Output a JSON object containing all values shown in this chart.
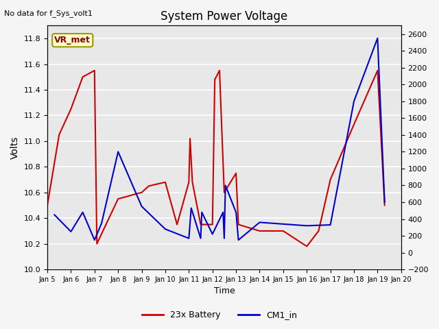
{
  "title": "System Power Voltage",
  "top_left_text": "No data for f_Sys_volt1",
  "annotation_box": "VR_met",
  "xlabel": "Time",
  "ylabel_left": "Volts",
  "ylim_left": [
    10.0,
    11.9
  ],
  "ylim_right": [
    -200,
    2700
  ],
  "x_labels": [
    "Jan 5",
    "Jan 6",
    "Jan 7",
    "Jan 8",
    "Jan 9",
    "Jan 10",
    "Jan 11",
    "Jan 12",
    "Jan 13",
    "Jan 14",
    "Jan 15",
    "Jan 16",
    "Jan 17",
    "Jan 18",
    "Jan 19",
    "Jan 20"
  ],
  "red_x": [
    5.0,
    5.5,
    6.0,
    6.5,
    7.0,
    7.1,
    8.0,
    9.0,
    9.3,
    10.0,
    10.5,
    11.0,
    11.05,
    11.15,
    11.5,
    12.0,
    12.1,
    12.3,
    12.5,
    13.0,
    13.1,
    14.0,
    15.0,
    16.0,
    16.5,
    17.0,
    18.0,
    19.0,
    19.3
  ],
  "red_y": [
    10.5,
    11.05,
    11.25,
    11.5,
    11.55,
    10.2,
    10.55,
    10.6,
    10.65,
    10.68,
    10.35,
    10.68,
    11.02,
    10.68,
    10.35,
    10.35,
    11.48,
    11.55,
    10.6,
    10.75,
    10.35,
    10.3,
    10.3,
    10.18,
    10.3,
    10.7,
    11.13,
    11.55,
    10.5
  ],
  "blue_x": [
    5.3,
    6.0,
    6.5,
    7.0,
    7.3,
    8.0,
    9.0,
    10.0,
    11.0,
    11.1,
    11.5,
    11.55,
    12.0,
    12.45,
    12.5,
    12.55,
    13.0,
    13.1,
    14.0,
    15.0,
    16.0,
    17.0,
    18.0,
    19.0,
    19.3
  ],
  "blue_y": [
    450,
    250,
    480,
    150,
    350,
    1200,
    550,
    280,
    170,
    530,
    170,
    480,
    220,
    480,
    170,
    800,
    480,
    150,
    360,
    340,
    320,
    330,
    1800,
    2550,
    600
  ],
  "red_color": "#cc0000",
  "blue_color": "#0000cc",
  "grid_color": "white",
  "fig_bg": "#f5f5f5",
  "plot_bg": "#e8e8e8",
  "right_yticks": [
    -200,
    0,
    200,
    400,
    600,
    800,
    1000,
    1200,
    1400,
    1600,
    1800,
    2000,
    2200,
    2400,
    2600
  ],
  "left_yticks": [
    10.0,
    10.2,
    10.4,
    10.6,
    10.8,
    11.0,
    11.2,
    11.4,
    11.6,
    11.8
  ]
}
